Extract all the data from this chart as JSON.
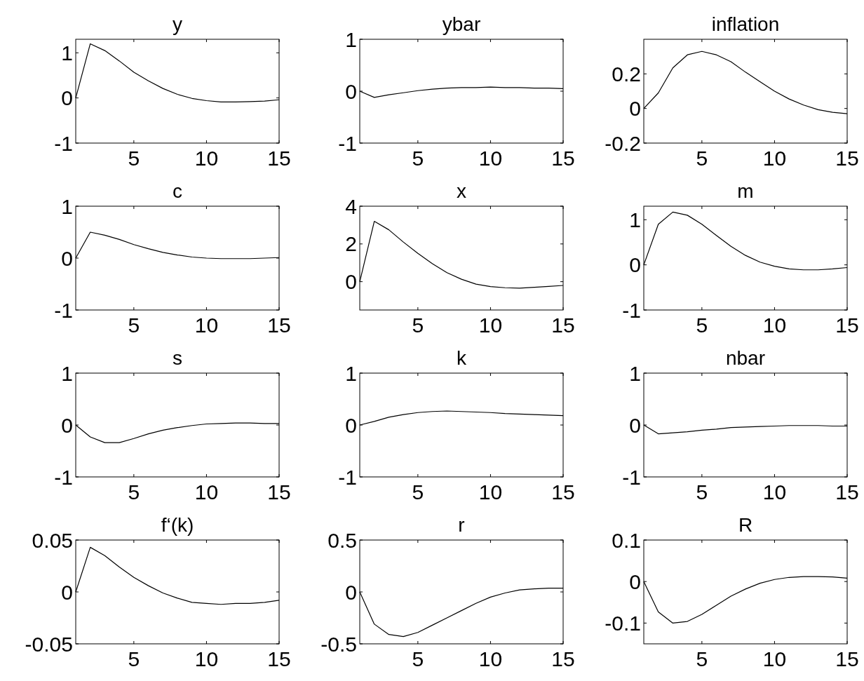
{
  "chart_data": [
    {
      "type": "line",
      "title": "y",
      "x": [
        1,
        2,
        3,
        4,
        5,
        6,
        7,
        8,
        9,
        10,
        11,
        12,
        13,
        14,
        15
      ],
      "values": [
        0,
        1.2,
        1.05,
        0.82,
        0.57,
        0.38,
        0.21,
        0.08,
        -0.01,
        -0.06,
        -0.09,
        -0.09,
        -0.08,
        -0.07,
        -0.04
      ],
      "color": "#000000",
      "xlim": [
        1,
        15
      ],
      "xticks": [
        5,
        10,
        15
      ],
      "ylim": [
        -1,
        1.3
      ],
      "yticks": [
        -1,
        0,
        1
      ]
    },
    {
      "type": "line",
      "title": "ybar",
      "x": [
        1,
        2,
        3,
        4,
        5,
        6,
        7,
        8,
        9,
        10,
        11,
        12,
        13,
        14,
        15
      ],
      "values": [
        0,
        -0.12,
        -0.07,
        -0.03,
        0.01,
        0.04,
        0.06,
        0.07,
        0.07,
        0.08,
        0.07,
        0.07,
        0.06,
        0.06,
        0.05
      ],
      "color": "#000000",
      "xlim": [
        1,
        15
      ],
      "xticks": [
        5,
        10,
        15
      ],
      "ylim": [
        -1,
        1
      ],
      "yticks": [
        -1,
        0,
        1
      ]
    },
    {
      "type": "line",
      "title": "inflation",
      "x": [
        1,
        2,
        3,
        4,
        5,
        6,
        7,
        8,
        9,
        10,
        11,
        12,
        13,
        14,
        15
      ],
      "values": [
        0,
        0.09,
        0.235,
        0.31,
        0.33,
        0.31,
        0.27,
        0.21,
        0.155,
        0.1,
        0.055,
        0.02,
        -0.007,
        -0.022,
        -0.03
      ],
      "color": "#000000",
      "xlim": [
        1,
        15
      ],
      "xticks": [
        5,
        10,
        15
      ],
      "ylim": [
        -0.2,
        0.4
      ],
      "yticks": [
        -0.2,
        0,
        0.2
      ]
    },
    {
      "type": "line",
      "title": "c",
      "x": [
        1,
        2,
        3,
        4,
        5,
        6,
        7,
        8,
        9,
        10,
        11,
        12,
        13,
        14,
        15
      ],
      "values": [
        0,
        0.5,
        0.44,
        0.36,
        0.26,
        0.18,
        0.11,
        0.06,
        0.02,
        0,
        -0.01,
        -0.01,
        -0.01,
        0,
        0.01
      ],
      "color": "#000000",
      "xlim": [
        1,
        15
      ],
      "xticks": [
        5,
        10,
        15
      ],
      "ylim": [
        -1,
        1
      ],
      "yticks": [
        -1,
        0,
        1
      ]
    },
    {
      "type": "line",
      "title": "x",
      "x": [
        1,
        2,
        3,
        4,
        5,
        6,
        7,
        8,
        9,
        10,
        11,
        12,
        13,
        14,
        15
      ],
      "values": [
        0,
        3.2,
        2.75,
        2.1,
        1.5,
        0.95,
        0.48,
        0.13,
        -0.13,
        -0.26,
        -0.32,
        -0.34,
        -0.3,
        -0.25,
        -0.2
      ],
      "color": "#000000",
      "xlim": [
        1,
        15
      ],
      "xticks": [
        5,
        10,
        15
      ],
      "ylim": [
        -1.5,
        4
      ],
      "yticks": [
        0,
        2,
        4
      ]
    },
    {
      "type": "line",
      "title": "m",
      "x": [
        1,
        2,
        3,
        4,
        5,
        6,
        7,
        8,
        9,
        10,
        11,
        12,
        13,
        14,
        15
      ],
      "values": [
        0,
        0.9,
        1.17,
        1.1,
        0.9,
        0.65,
        0.41,
        0.21,
        0.06,
        -0.03,
        -0.09,
        -0.11,
        -0.11,
        -0.09,
        -0.06
      ],
      "color": "#000000",
      "xlim": [
        1,
        15
      ],
      "xticks": [
        5,
        10,
        15
      ],
      "ylim": [
        -1,
        1.3
      ],
      "yticks": [
        -1,
        0,
        1
      ]
    },
    {
      "type": "line",
      "title": "s",
      "x": [
        1,
        2,
        3,
        4,
        5,
        6,
        7,
        8,
        9,
        10,
        11,
        12,
        13,
        14,
        15
      ],
      "values": [
        0,
        -0.23,
        -0.34,
        -0.34,
        -0.26,
        -0.17,
        -0.1,
        -0.05,
        -0.01,
        0.02,
        0.03,
        0.04,
        0.04,
        0.03,
        0.03
      ],
      "color": "#000000",
      "xlim": [
        1,
        15
      ],
      "xticks": [
        5,
        10,
        15
      ],
      "ylim": [
        -1,
        1
      ],
      "yticks": [
        -1,
        0,
        1
      ]
    },
    {
      "type": "line",
      "title": "k",
      "x": [
        1,
        2,
        3,
        4,
        5,
        6,
        7,
        8,
        9,
        10,
        11,
        12,
        13,
        14,
        15
      ],
      "values": [
        0,
        0.07,
        0.15,
        0.2,
        0.24,
        0.26,
        0.27,
        0.26,
        0.25,
        0.24,
        0.22,
        0.21,
        0.2,
        0.19,
        0.18
      ],
      "color": "#000000",
      "xlim": [
        1,
        15
      ],
      "xticks": [
        5,
        10,
        15
      ],
      "ylim": [
        -1,
        1
      ],
      "yticks": [
        -1,
        0,
        1
      ]
    },
    {
      "type": "line",
      "title": "nbar",
      "x": [
        1,
        2,
        3,
        4,
        5,
        6,
        7,
        8,
        9,
        10,
        11,
        12,
        13,
        14,
        15
      ],
      "values": [
        0,
        -0.17,
        -0.15,
        -0.13,
        -0.1,
        -0.08,
        -0.05,
        -0.04,
        -0.03,
        -0.02,
        -0.01,
        -0.01,
        -0.01,
        -0.02,
        -0.02
      ],
      "color": "#000000",
      "xlim": [
        1,
        15
      ],
      "xticks": [
        5,
        10,
        15
      ],
      "ylim": [
        -1,
        1
      ],
      "yticks": [
        -1,
        0,
        1
      ]
    },
    {
      "type": "line",
      "title": "f‘(k)",
      "x": [
        1,
        2,
        3,
        4,
        5,
        6,
        7,
        8,
        9,
        10,
        11,
        12,
        13,
        14,
        15
      ],
      "values": [
        0,
        0.043,
        0.035,
        0.024,
        0.014,
        0.006,
        -0.001,
        -0.006,
        -0.01,
        -0.011,
        -0.012,
        -0.011,
        -0.011,
        -0.01,
        -0.008
      ],
      "color": "#000000",
      "xlim": [
        1,
        15
      ],
      "xticks": [
        5,
        10,
        15
      ],
      "ylim": [
        -0.05,
        0.05
      ],
      "yticks": [
        -0.05,
        0,
        0.05
      ]
    },
    {
      "type": "line",
      "title": "r",
      "x": [
        1,
        2,
        3,
        4,
        5,
        6,
        7,
        8,
        9,
        10,
        11,
        12,
        13,
        14,
        15
      ],
      "values": [
        0,
        -0.31,
        -0.41,
        -0.43,
        -0.39,
        -0.32,
        -0.25,
        -0.18,
        -0.11,
        -0.05,
        -0.01,
        0.02,
        0.03,
        0.036,
        0.036
      ],
      "color": "#000000",
      "xlim": [
        1,
        15
      ],
      "xticks": [
        5,
        10,
        15
      ],
      "ylim": [
        -0.5,
        0.5
      ],
      "yticks": [
        -0.5,
        0,
        0.5
      ]
    },
    {
      "type": "line",
      "title": "R",
      "x": [
        1,
        2,
        3,
        4,
        5,
        6,
        7,
        8,
        9,
        10,
        11,
        12,
        13,
        14,
        15
      ],
      "values": [
        0,
        -0.073,
        -0.1,
        -0.096,
        -0.079,
        -0.057,
        -0.035,
        -0.018,
        -0.004,
        0.005,
        0.01,
        0.012,
        0.012,
        0.011,
        0.008
      ],
      "color": "#000000",
      "xlim": [
        1,
        15
      ],
      "xticks": [
        5,
        10,
        15
      ],
      "ylim": [
        -0.15,
        0.1
      ],
      "yticks": [
        -0.1,
        0,
        0.1
      ]
    }
  ]
}
